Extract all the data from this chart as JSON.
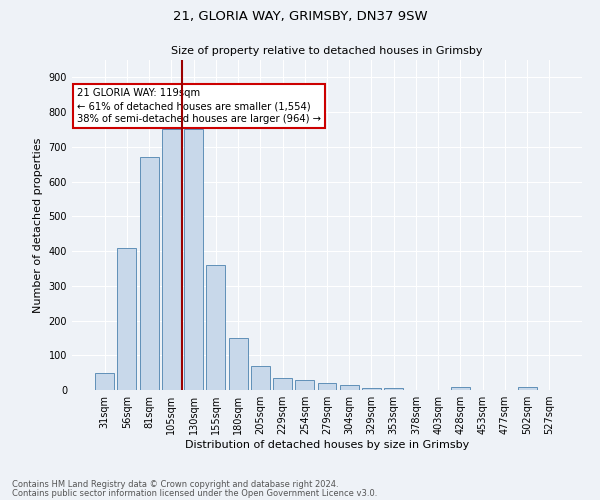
{
  "title1": "21, GLORIA WAY, GRIMSBY, DN37 9SW",
  "title2": "Size of property relative to detached houses in Grimsby",
  "xlabel": "Distribution of detached houses by size in Grimsby",
  "ylabel": "Number of detached properties",
  "bar_labels": [
    "31sqm",
    "56sqm",
    "81sqm",
    "105sqm",
    "130sqm",
    "155sqm",
    "180sqm",
    "205sqm",
    "229sqm",
    "254sqm",
    "279sqm",
    "304sqm",
    "329sqm",
    "353sqm",
    "378sqm",
    "403sqm",
    "428sqm",
    "453sqm",
    "477sqm",
    "502sqm",
    "527sqm"
  ],
  "bar_values": [
    48,
    410,
    670,
    750,
    750,
    360,
    150,
    68,
    35,
    28,
    20,
    15,
    5,
    5,
    0,
    0,
    8,
    0,
    0,
    8,
    0
  ],
  "bar_color": "#c8d8ea",
  "bar_edge_color": "#6090b8",
  "vline_color": "#9b0000",
  "annotation_text": "21 GLORIA WAY: 119sqm\n← 61% of detached houses are smaller (1,554)\n38% of semi-detached houses are larger (964) →",
  "annotation_box_color": "#ffffff",
  "annotation_box_edge": "#cc0000",
  "ylim": [
    0,
    950
  ],
  "yticks": [
    0,
    100,
    200,
    300,
    400,
    500,
    600,
    700,
    800,
    900
  ],
  "footer1": "Contains HM Land Registry data © Crown copyright and database right 2024.",
  "footer2": "Contains public sector information licensed under the Open Government Licence v3.0.",
  "bg_color": "#eef2f7",
  "plot_bg_color": "#eef2f7",
  "grid_color": "#ffffff",
  "title1_fontsize": 9.5,
  "title2_fontsize": 8,
  "ylabel_fontsize": 8,
  "xlabel_fontsize": 8,
  "tick_fontsize": 7,
  "footer_fontsize": 6
}
